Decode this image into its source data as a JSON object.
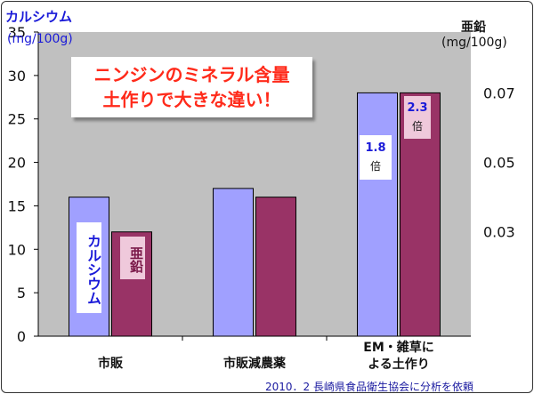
{
  "axes": {
    "left_title": "カルシウム",
    "left_unit": "(mg/100g)",
    "right_title": "亜鉛",
    "right_unit": "(mg/100g)"
  },
  "callout": {
    "line1": "ニンジンのミネラル含量",
    "line2": "土作りで大きな違い！"
  },
  "bar_labels": {
    "calcium_series": "カルシウム",
    "zinc_series": "亜鉛"
  },
  "ratios": [
    {
      "value": "1.8",
      "unit": "倍"
    },
    {
      "value": "2.3",
      "unit": "倍"
    }
  ],
  "footer": "2010．2 長崎県食品衛生協会に分析を依頼",
  "colors": {
    "calcium": "#a0a0ff",
    "zinc": "#993366",
    "plot_bg": "#c0c0c0",
    "axis_text_left": "#1a1ad8"
  },
  "chart_data": {
    "type": "bar",
    "categories": [
      [
        "市販"
      ],
      [
        "市販減農薬"
      ],
      [
        "EM・雑草に",
        "よる土作り"
      ]
    ],
    "series": [
      {
        "name": "カルシウム",
        "axis": "left",
        "values": [
          16,
          17,
          28
        ]
      },
      {
        "name": "亜鉛",
        "axis": "right",
        "values": [
          0.03,
          0.04,
          0.07
        ]
      }
    ],
    "y_left": {
      "ylim": [
        0,
        35
      ],
      "ticks": [
        0,
        5,
        10,
        15,
        20,
        25,
        30,
        35
      ]
    },
    "y_right": {
      "ylim": [
        0,
        0.0875
      ],
      "ticks": [
        0.03,
        0.05,
        0.07
      ]
    },
    "grid": false,
    "legend": "none"
  }
}
